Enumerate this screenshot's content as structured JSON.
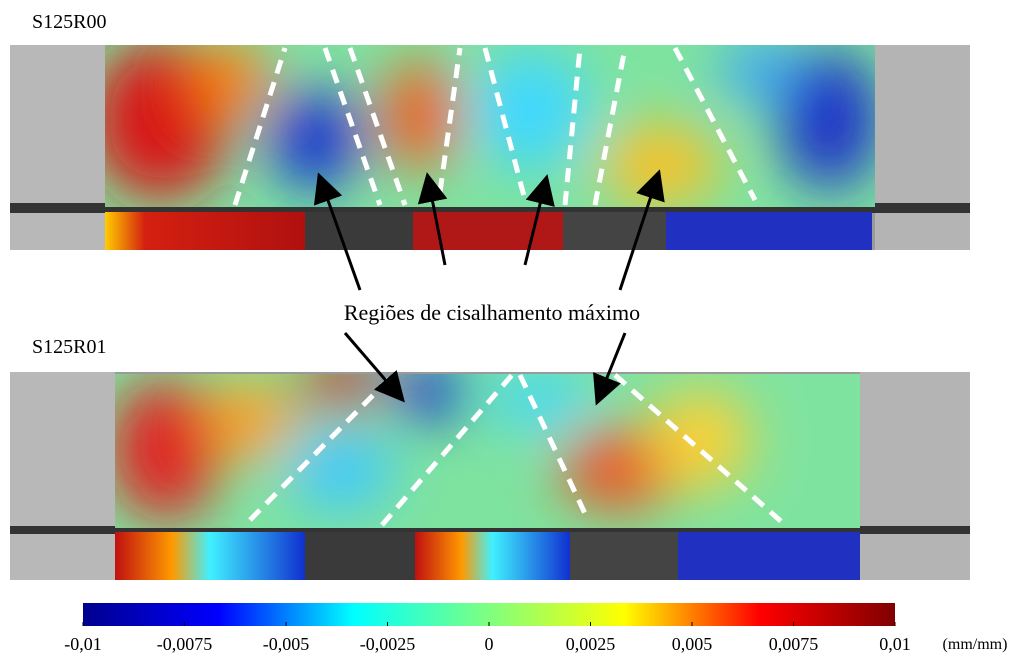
{
  "panels": [
    {
      "label": "S125R00"
    },
    {
      "label": "S125R01"
    }
  ],
  "annotation": "Regiões de cisalhamento máximo",
  "colorbar": {
    "colormap": "jet",
    "range": [
      -0.01,
      0.01
    ],
    "ticks": [
      {
        "value": -0.01,
        "label": "-0,01"
      },
      {
        "value": -0.0075,
        "label": "-0,0075"
      },
      {
        "value": -0.005,
        "label": "-0,005"
      },
      {
        "value": -0.0025,
        "label": "-0,0025"
      },
      0,
      {
        "value": 0.0025,
        "label": "0,0025"
      },
      {
        "value": 0.005,
        "label": "0,005"
      },
      {
        "value": 0.0075,
        "label": "0,0075"
      },
      {
        "value": 0.01,
        "label": "0,01"
      }
    ],
    "unit": "(mm/mm)"
  }
}
